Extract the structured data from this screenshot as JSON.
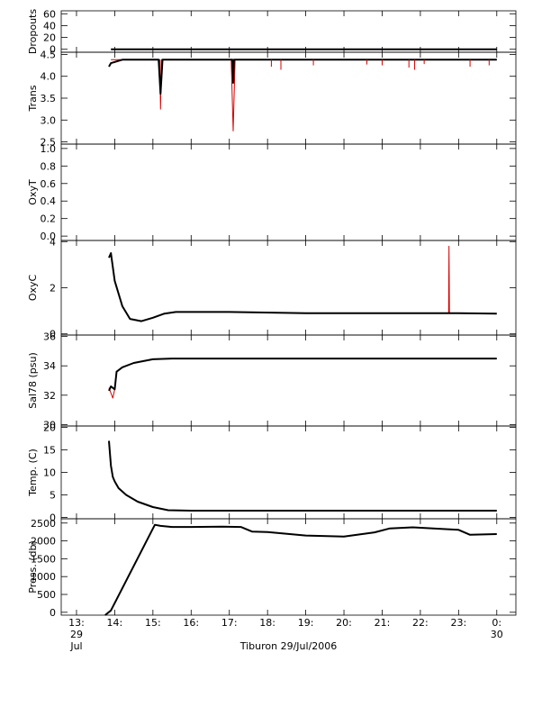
{
  "colors": {
    "axis": "#000000",
    "trace": "#000000",
    "raw": "#d40000",
    "background": "#ffffff"
  },
  "figure": {
    "caption": "Tiburon 29/Jul/2006"
  },
  "x_axis": {
    "range_hours": [
      12.6,
      24.5
    ],
    "ticks": [
      {
        "h": 13,
        "label": "13:",
        "sub1": "29",
        "sub2": "Jul"
      },
      {
        "h": 14,
        "label": "14:"
      },
      {
        "h": 15,
        "label": "15:"
      },
      {
        "h": 16,
        "label": "16:"
      },
      {
        "h": 17,
        "label": "17:"
      },
      {
        "h": 18,
        "label": "18:"
      },
      {
        "h": 19,
        "label": "19:"
      },
      {
        "h": 20,
        "label": "20:"
      },
      {
        "h": 21,
        "label": "21:"
      },
      {
        "h": 22,
        "label": "22:"
      },
      {
        "h": 23,
        "label": "23:"
      },
      {
        "h": 24,
        "label": "0:",
        "sub1": "30"
      }
    ]
  },
  "chart_data": [
    {
      "type": "line",
      "ylabel": "Dropouts",
      "ylim": [
        -5,
        65
      ],
      "yticks": [
        {
          "v": 0,
          "label": "0"
        },
        {
          "v": 20,
          "label": "20"
        },
        {
          "v": 40,
          "label": "40"
        },
        {
          "v": 60,
          "label": "60"
        }
      ],
      "series": [
        {
          "kind": "main",
          "x": [
            13.9,
            24.0
          ],
          "y": [
            0,
            0
          ]
        }
      ]
    },
    {
      "type": "line",
      "ylabel": "Trans",
      "ylim": [
        2.45,
        4.55
      ],
      "yticks": [
        {
          "v": 2.5,
          "label": "2.5"
        },
        {
          "v": 3.0,
          "label": "3.0"
        },
        {
          "v": 3.5,
          "label": "3.5"
        },
        {
          "v": 4.0,
          "label": "4.0"
        },
        {
          "v": 4.5,
          "label": "4.5"
        }
      ],
      "series": [
        {
          "kind": "raw",
          "x": [
            13.9,
            15.18,
            15.2,
            15.22,
            17.05,
            17.1,
            17.15,
            24.0
          ],
          "y": [
            4.38,
            4.38,
            3.25,
            4.38,
            4.38,
            2.75,
            4.38,
            4.38
          ]
        },
        {
          "kind": "main",
          "x": [
            13.85,
            13.9,
            14.2,
            15.15,
            15.2,
            15.25,
            17.08,
            17.1,
            17.12,
            24.0
          ],
          "y": [
            4.22,
            4.3,
            4.38,
            4.38,
            3.6,
            4.38,
            4.38,
            3.85,
            4.38,
            4.38
          ]
        }
      ],
      "spikes": [
        {
          "x": 18.1,
          "y": 4.22
        },
        {
          "x": 18.35,
          "y": 4.15
        },
        {
          "x": 19.2,
          "y": 4.25
        },
        {
          "x": 20.6,
          "y": 4.27
        },
        {
          "x": 21.0,
          "y": 4.25
        },
        {
          "x": 21.7,
          "y": 4.2
        },
        {
          "x": 21.85,
          "y": 4.15
        },
        {
          "x": 22.1,
          "y": 4.28
        },
        {
          "x": 23.3,
          "y": 4.22
        },
        {
          "x": 23.8,
          "y": 4.25
        }
      ]
    },
    {
      "type": "line",
      "ylabel": "OxyT",
      "ylim": [
        -0.05,
        1.05
      ],
      "yticks": [
        {
          "v": 0.0,
          "label": "0.0"
        },
        {
          "v": 0.2,
          "label": "0.2"
        },
        {
          "v": 0.4,
          "label": "0.4"
        },
        {
          "v": 0.6,
          "label": "0.6"
        },
        {
          "v": 0.8,
          "label": "0.8"
        },
        {
          "v": 1.0,
          "label": "1.0"
        }
      ],
      "series": []
    },
    {
      "type": "line",
      "ylabel": "OxyC",
      "ylim": [
        -0.05,
        4.05
      ],
      "yticks": [
        {
          "v": 0,
          "label": "0"
        },
        {
          "v": 2,
          "label": "2"
        },
        {
          "v": 4,
          "label": "4"
        }
      ],
      "series": [
        {
          "kind": "raw",
          "x": [
            22.74,
            22.75,
            22.76
          ],
          "y": [
            0.9,
            3.8,
            0.9
          ]
        },
        {
          "kind": "main",
          "x": [
            13.85,
            13.9,
            14.0,
            14.2,
            14.4,
            14.7,
            15.0,
            15.3,
            15.6,
            17.0,
            19.0,
            21.0,
            23.0,
            24.0
          ],
          "y": [
            3.3,
            3.5,
            2.3,
            1.2,
            0.65,
            0.55,
            0.7,
            0.88,
            0.95,
            0.95,
            0.9,
            0.9,
            0.9,
            0.88
          ]
        }
      ]
    },
    {
      "type": "line",
      "ylabel": "Sal78 (psu)",
      "ylim": [
        29.9,
        36.1
      ],
      "yticks": [
        {
          "v": 30,
          "label": "30"
        },
        {
          "v": 32,
          "label": "32"
        },
        {
          "v": 34,
          "label": "34"
        },
        {
          "v": 36,
          "label": "36"
        }
      ],
      "series": [
        {
          "kind": "raw",
          "x": [
            13.85,
            13.95,
            14.0,
            14.05
          ],
          "y": [
            32.5,
            31.8,
            32.4,
            33.6
          ]
        },
        {
          "kind": "main",
          "x": [
            13.85,
            13.9,
            14.0,
            14.05,
            14.2,
            14.5,
            15.0,
            15.5,
            17.0,
            20.0,
            24.0
          ],
          "y": [
            32.3,
            32.6,
            32.4,
            33.6,
            33.9,
            34.2,
            34.45,
            34.5,
            34.5,
            34.5,
            34.5
          ]
        }
      ]
    },
    {
      "type": "line",
      "ylabel": "Temp. (C)",
      "ylim": [
        -0.3,
        20.3
      ],
      "yticks": [
        {
          "v": 0,
          "label": "0"
        },
        {
          "v": 5,
          "label": "5"
        },
        {
          "v": 10,
          "label": "10"
        },
        {
          "v": 15,
          "label": "15"
        },
        {
          "v": 20,
          "label": "20"
        }
      ],
      "series": [
        {
          "kind": "main",
          "x": [
            13.85,
            13.9,
            13.95,
            14.0,
            14.1,
            14.3,
            14.6,
            15.0,
            15.4,
            16.0,
            20.0,
            24.0
          ],
          "y": [
            17.0,
            11.5,
            9.0,
            8.0,
            6.5,
            5.0,
            3.5,
            2.3,
            1.6,
            1.5,
            1.5,
            1.5
          ]
        }
      ]
    },
    {
      "type": "line",
      "ylabel": "Press. (db)",
      "ylim": [
        -80,
        2620
      ],
      "yticks": [
        {
          "v": 0,
          "label": "0"
        },
        {
          "v": 500,
          "label": "500"
        },
        {
          "v": 1000,
          "label": "1000"
        },
        {
          "v": 1500,
          "label": "1500"
        },
        {
          "v": 2000,
          "label": "2000"
        },
        {
          "v": 2500,
          "label": "2500"
        }
      ],
      "series": [
        {
          "kind": "main",
          "x": [
            13.75,
            13.9,
            15.05,
            15.2,
            15.5,
            16.0,
            16.8,
            17.3,
            17.6,
            18.0,
            19.0,
            20.0,
            20.8,
            21.2,
            21.8,
            22.5,
            23.0,
            23.3,
            24.0
          ],
          "y": [
            -80,
            50,
            2450,
            2420,
            2390,
            2390,
            2400,
            2390,
            2260,
            2250,
            2150,
            2120,
            2240,
            2350,
            2380,
            2340,
            2310,
            2170,
            2190
          ]
        }
      ]
    }
  ]
}
